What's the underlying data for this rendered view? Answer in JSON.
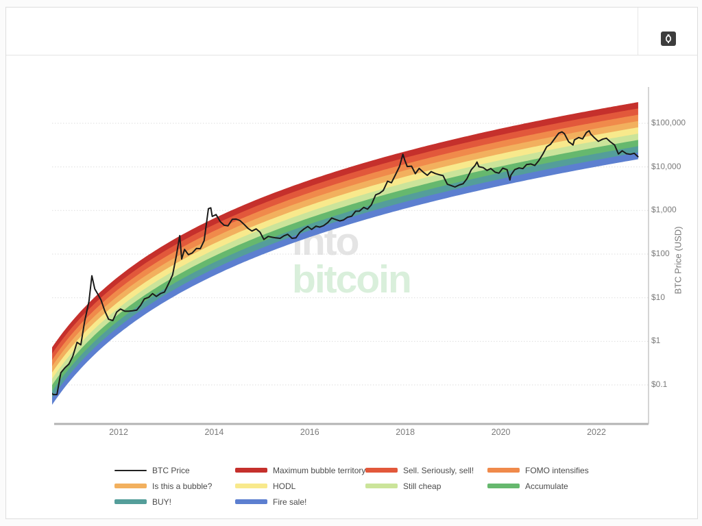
{
  "header": {
    "camera_icon": "camera-icon"
  },
  "watermark": {
    "line1": "into",
    "line2": "bitcoin",
    "color1": "#e4e4e4",
    "color2": "#d9efdb"
  },
  "chart_data": {
    "type": "line",
    "title": "",
    "ylabel": "BTC Price (USD)",
    "y_scale": "log",
    "grid": "horizontal-dotted",
    "x_ticks": [
      "2012",
      "2014",
      "2016",
      "2018",
      "2020",
      "2022"
    ],
    "x_tick_years": [
      2012,
      2014,
      2016,
      2018,
      2020,
      2022
    ],
    "y_ticks": [
      "$100,000",
      "$10,000",
      "$1,000",
      "$100",
      "$10",
      "$1",
      "$0.1"
    ],
    "y_tick_values": [
      100000,
      10000,
      1000,
      100,
      10,
      1,
      0.1
    ],
    "x_range": [
      2010.6,
      2023.1
    ],
    "ylim": [
      0.013,
      680000
    ],
    "legend_position": "bottom",
    "series": [
      {
        "name": "BTC Price",
        "color": "#1a1a1a",
        "points": [
          [
            2010.6,
            0.065
          ],
          [
            2010.63,
            0.06
          ],
          [
            2010.71,
            0.06
          ],
          [
            2010.79,
            0.19
          ],
          [
            2010.88,
            0.25
          ],
          [
            2010.96,
            0.3
          ],
          [
            2011.04,
            0.45
          ],
          [
            2011.13,
            0.95
          ],
          [
            2011.21,
            0.83
          ],
          [
            2011.29,
            2.9
          ],
          [
            2011.38,
            8.3
          ],
          [
            2011.44,
            31.9
          ],
          [
            2011.5,
            16.0
          ],
          [
            2011.54,
            13.5
          ],
          [
            2011.63,
            9.0
          ],
          [
            2011.71,
            5.0
          ],
          [
            2011.79,
            3.2
          ],
          [
            2011.88,
            3.0
          ],
          [
            2011.96,
            4.7
          ],
          [
            2012.04,
            5.5
          ],
          [
            2012.13,
            4.9
          ],
          [
            2012.21,
            4.9
          ],
          [
            2012.29,
            5.0
          ],
          [
            2012.38,
            5.2
          ],
          [
            2012.46,
            6.7
          ],
          [
            2012.54,
            9.4
          ],
          [
            2012.63,
            10.2
          ],
          [
            2012.71,
            12.4
          ],
          [
            2012.79,
            10.7
          ],
          [
            2012.88,
            12.5
          ],
          [
            2012.96,
            13.5
          ],
          [
            2013.04,
            20.4
          ],
          [
            2013.13,
            33.4
          ],
          [
            2013.21,
            93
          ],
          [
            2013.28,
            266
          ],
          [
            2013.32,
            77
          ],
          [
            2013.38,
            128
          ],
          [
            2013.46,
            97
          ],
          [
            2013.54,
            106
          ],
          [
            2013.63,
            135
          ],
          [
            2013.71,
            133
          ],
          [
            2013.79,
            204
          ],
          [
            2013.88,
            1100
          ],
          [
            2013.93,
            1150
          ],
          [
            2013.96,
            732
          ],
          [
            2014.04,
            805
          ],
          [
            2014.13,
            550
          ],
          [
            2014.21,
            458
          ],
          [
            2014.29,
            446
          ],
          [
            2014.38,
            627
          ],
          [
            2014.46,
            635
          ],
          [
            2014.54,
            589
          ],
          [
            2014.63,
            478
          ],
          [
            2014.71,
            387
          ],
          [
            2014.79,
            338
          ],
          [
            2014.88,
            378
          ],
          [
            2014.96,
            318
          ],
          [
            2015.04,
            217
          ],
          [
            2015.13,
            254
          ],
          [
            2015.21,
            244
          ],
          [
            2015.29,
            236
          ],
          [
            2015.38,
            230
          ],
          [
            2015.46,
            263
          ],
          [
            2015.54,
            284
          ],
          [
            2015.63,
            230
          ],
          [
            2015.71,
            236
          ],
          [
            2015.79,
            314
          ],
          [
            2015.88,
            377
          ],
          [
            2015.96,
            430
          ],
          [
            2016.04,
            368
          ],
          [
            2016.13,
            437
          ],
          [
            2016.21,
            416
          ],
          [
            2016.29,
            448
          ],
          [
            2016.38,
            531
          ],
          [
            2016.46,
            673
          ],
          [
            2016.54,
            624
          ],
          [
            2016.63,
            575
          ],
          [
            2016.71,
            609
          ],
          [
            2016.79,
            700
          ],
          [
            2016.88,
            742
          ],
          [
            2016.96,
            963
          ],
          [
            2017.04,
            970
          ],
          [
            2017.13,
            1179
          ],
          [
            2017.21,
            1071
          ],
          [
            2017.29,
            1347
          ],
          [
            2017.38,
            2286
          ],
          [
            2017.46,
            2480
          ],
          [
            2017.54,
            2875
          ],
          [
            2017.63,
            4703
          ],
          [
            2017.71,
            4338
          ],
          [
            2017.79,
            6468
          ],
          [
            2017.88,
            10233
          ],
          [
            2017.95,
            19500
          ],
          [
            2017.99,
            14156
          ],
          [
            2018.04,
            10221
          ],
          [
            2018.13,
            10397
          ],
          [
            2018.21,
            6973
          ],
          [
            2018.29,
            9240
          ],
          [
            2018.38,
            7494
          ],
          [
            2018.46,
            6404
          ],
          [
            2018.54,
            7780
          ],
          [
            2018.63,
            7037
          ],
          [
            2018.71,
            6625
          ],
          [
            2018.79,
            6317
          ],
          [
            2018.88,
            4017
          ],
          [
            2018.96,
            3742
          ],
          [
            2019.04,
            3457
          ],
          [
            2019.13,
            3854
          ],
          [
            2019.21,
            4105
          ],
          [
            2019.29,
            5350
          ],
          [
            2019.38,
            8574
          ],
          [
            2019.46,
            10817
          ],
          [
            2019.5,
            12900
          ],
          [
            2019.54,
            10085
          ],
          [
            2019.63,
            9630
          ],
          [
            2019.71,
            8293
          ],
          [
            2019.79,
            9199
          ],
          [
            2019.88,
            7569
          ],
          [
            2019.96,
            7193
          ],
          [
            2020.04,
            9350
          ],
          [
            2020.13,
            8599
          ],
          [
            2020.19,
            5000
          ],
          [
            2020.21,
            6438
          ],
          [
            2020.29,
            8658
          ],
          [
            2020.38,
            9461
          ],
          [
            2020.46,
            9137
          ],
          [
            2020.54,
            11351
          ],
          [
            2020.63,
            11655
          ],
          [
            2020.71,
            10784
          ],
          [
            2020.79,
            13797
          ],
          [
            2020.88,
            19713
          ],
          [
            2020.96,
            28994
          ],
          [
            2021.04,
            33114
          ],
          [
            2021.13,
            45137
          ],
          [
            2021.21,
            58919
          ],
          [
            2021.28,
            63500
          ],
          [
            2021.33,
            57750
          ],
          [
            2021.42,
            37333
          ],
          [
            2021.46,
            35041
          ],
          [
            2021.51,
            31800
          ],
          [
            2021.54,
            41626
          ],
          [
            2021.63,
            47166
          ],
          [
            2021.71,
            43791
          ],
          [
            2021.79,
            61319
          ],
          [
            2021.85,
            67500
          ],
          [
            2021.88,
            57006
          ],
          [
            2021.96,
            46217
          ],
          [
            2022.04,
            38483
          ],
          [
            2022.13,
            43193
          ],
          [
            2022.21,
            45539
          ],
          [
            2022.29,
            37714
          ],
          [
            2022.38,
            31792
          ],
          [
            2022.46,
            19785
          ],
          [
            2022.54,
            23337
          ],
          [
            2022.63,
            20050
          ],
          [
            2022.71,
            19432
          ],
          [
            2022.79,
            20490
          ],
          [
            2022.87,
            17100
          ]
        ]
      }
    ],
    "rainbow_bands": [
      {
        "name": "Maximum bubble territory",
        "color": "#c5302c"
      },
      {
        "name": "Sell. Seriously, sell!",
        "color": "#e2583b"
      },
      {
        "name": "FOMO intensifies",
        "color": "#f08a4b"
      },
      {
        "name": "Is this a bubble?",
        "color": "#f2b05e"
      },
      {
        "name": "HODL",
        "color": "#f8e98c"
      },
      {
        "name": "Still cheap",
        "color": "#cbe49a"
      },
      {
        "name": "Accumulate",
        "color": "#66b86e"
      },
      {
        "name": "BUY!",
        "color": "#549e9a"
      },
      {
        "name": "Fire sale!",
        "color": "#5c7fd0"
      }
    ],
    "band_model": {
      "a": 2.611,
      "b": -2.037,
      "t0": 2009.0,
      "half_width_decades": 0.65,
      "t_start": 2010.6,
      "t_end": 2022.87
    }
  },
  "legend": {
    "items": [
      {
        "label": "BTC Price",
        "color": "#222222",
        "type": "line"
      },
      {
        "label": "Maximum bubble territory",
        "color": "#c5302c",
        "type": "band"
      },
      {
        "label": "Sell. Seriously, sell!",
        "color": "#e2583b",
        "type": "band"
      },
      {
        "label": "FOMO intensifies",
        "color": "#f08a4b",
        "type": "band"
      },
      {
        "label": "Is this a bubble?",
        "color": "#f2b05e",
        "type": "band"
      },
      {
        "label": "HODL",
        "color": "#f8e98c",
        "type": "band"
      },
      {
        "label": "Still cheap",
        "color": "#cbe49a",
        "type": "band"
      },
      {
        "label": "Accumulate",
        "color": "#66b86e",
        "type": "band"
      },
      {
        "label": "BUY!",
        "color": "#549e9a",
        "type": "band"
      },
      {
        "label": "Fire sale!",
        "color": "#5c7fd0",
        "type": "band"
      }
    ]
  }
}
